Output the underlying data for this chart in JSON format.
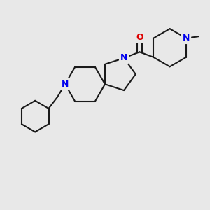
{
  "background_color": "#e8e8e8",
  "bond_color": "#1a1a1a",
  "N_color": "#0000ee",
  "O_color": "#dd0000",
  "bond_lw": 1.5,
  "font_size": 9.0,
  "xlim": [
    -1,
    11
  ],
  "ylim": [
    -1,
    11
  ]
}
